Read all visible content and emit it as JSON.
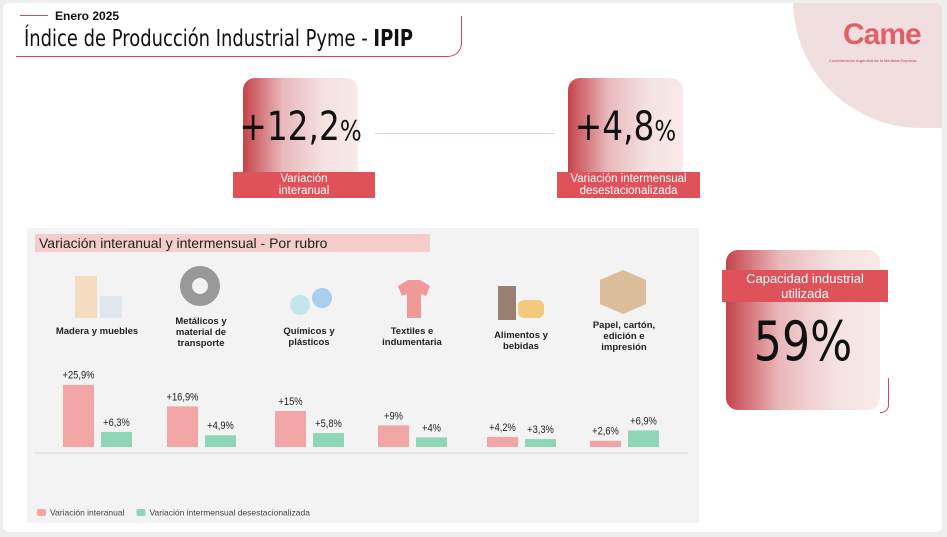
{
  "header": {
    "subtitle": "Enero 2025",
    "title_main": "Índice de Producción Industrial Pyme - ",
    "title_emphasis": "IPIP"
  },
  "logo": {
    "name": "Came",
    "tagline": "Confederación Argentina de la Mediana Empresa"
  },
  "kpis": [
    {
      "number": "+12,2",
      "unit": "%",
      "label": "Variación interanual"
    },
    {
      "number": "+4,8",
      "unit": "%",
      "label": "Variación intermensual desestacionalizada"
    },
    {
      "number": "59",
      "unit": "%",
      "label": "Capacidad industrial utilizada"
    }
  ],
  "chart_data": {
    "type": "bar",
    "title": "Variación interanual y intermensual - Por rubro",
    "categories": [
      "Madera y muebles",
      "Metálicos y material de transporte",
      "Químicos y plásticos",
      "Textiles e indumentaria",
      "Alimentos y bebidas",
      "Papel, cartón, edición e impresión"
    ],
    "series": [
      {
        "name": "Variación interanual",
        "color": "#f2a5a5",
        "values": [
          25.9,
          16.9,
          15,
          9,
          4.2,
          2.6
        ],
        "value_labels": [
          "+25,9%",
          "+16,9%",
          "+15%",
          "+9%",
          "+4,2%",
          "+2,6%"
        ]
      },
      {
        "name": "Variación intermensual desestacionalizada",
        "color": "#8fd6b8",
        "values": [
          6.3,
          4.9,
          5.8,
          4,
          3.3,
          6.9
        ],
        "value_labels": [
          "+6,3%",
          "+4,9%",
          "+5,8%",
          "+4%",
          "+3,3%",
          "+6,9%"
        ]
      }
    ]
  }
}
